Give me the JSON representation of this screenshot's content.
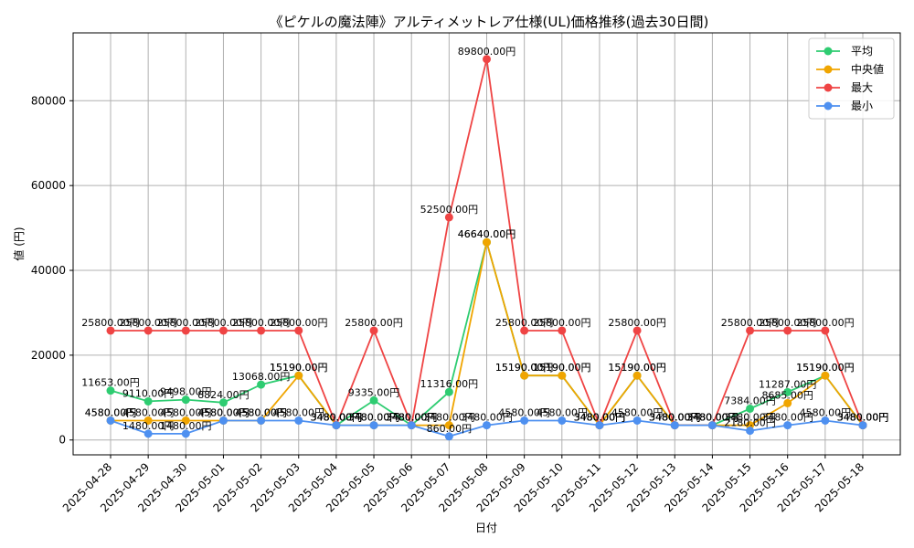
{
  "chart_data": {
    "type": "line",
    "title": "《ピケルの魔法陣》アルティメットレア仕様(UL)価格推移(過去30日間)",
    "xlabel": "日付",
    "ylabel": "値 (円)",
    "ylim": [
      -3500,
      96000
    ],
    "yticks": [
      0,
      20000,
      40000,
      60000,
      80000
    ],
    "grid": true,
    "legend_position": "top-right",
    "categories": [
      "2025-04-28",
      "2025-04-29",
      "2025-04-30",
      "2025-05-01",
      "2025-05-02",
      "2025-05-03",
      "2025-05-04",
      "2025-05-05",
      "2025-05-06",
      "2025-05-07",
      "2025-05-08",
      "2025-05-09",
      "2025-05-10",
      "2025-05-11",
      "2025-05-12",
      "2025-05-13",
      "2025-05-14",
      "2025-05-15",
      "2025-05-16",
      "2025-05-17",
      "2025-05-18"
    ],
    "series": [
      {
        "name": "平均",
        "color": "#2ecc71",
        "values": [
          11653,
          9110,
          9498,
          8824,
          13068,
          15190,
          3480,
          9335,
          3480,
          11316,
          46640,
          15190,
          15190,
          3480,
          15190,
          3480,
          3480,
          7384,
          11287,
          15190,
          3480
        ]
      },
      {
        "name": "中央値",
        "color": "#f0a500",
        "values": [
          4580,
          4580,
          4580,
          4580,
          4580,
          15190,
          3480,
          3480,
          3480,
          3480,
          46640,
          15190,
          15190,
          3480,
          15190,
          3480,
          3480,
          3480,
          8685,
          15190,
          3480
        ]
      },
      {
        "name": "最大",
        "color": "#ef4444",
        "values": [
          25800,
          25800,
          25800,
          25800,
          25800,
          25800,
          3480,
          25800,
          3480,
          52500,
          89800,
          25800,
          25800,
          3480,
          25800,
          3480,
          3480,
          25800,
          25800,
          25800,
          3480
        ]
      },
      {
        "name": "最小",
        "color": "#4e90f0",
        "values": [
          4580,
          1480,
          1480,
          4580,
          4580,
          4580,
          3480,
          3480,
          3480,
          860,
          3480,
          4580,
          4580,
          3480,
          4580,
          3480,
          3480,
          2180,
          3480,
          4580,
          3480
        ]
      }
    ],
    "labels": {
      "平均": [
        "11653.00円",
        "9110.00円",
        "9498.00円",
        "8824.00円",
        "13068.00円",
        "15190.00円",
        "3480.00円",
        "9335.00円",
        "3480.00円",
        "11316.00円",
        "46640.00円",
        "15190.00円",
        "15190.00円",
        "3480.00円",
        "15190.00円",
        "3480.00円",
        "3480.00円",
        "7384.00円",
        "11287.00円",
        "15190.00円",
        "3480.00円"
      ],
      "中央値": [
        "4580.00円",
        "4580.00円",
        "4580.00円",
        "4580.00円",
        "4580.00円",
        "15190.00円",
        "3480.00円",
        "3480.00円",
        "3480.00円",
        "3480.00円",
        "46640.00円",
        "15190.00円",
        "15190.00円",
        "3480.00円",
        "15190.00円",
        "3480.00円",
        "3480.00円",
        "3480.00円",
        "8685.00円",
        "15190.00円",
        "3480.00円"
      ],
      "最大": [
        "25800.00円",
        "25800.00円",
        "25800.00円",
        "25800.00円",
        "25800.00円",
        "25800.00円",
        "3480.00円",
        "25800.00円",
        "3480.00円",
        "52500.00円",
        "89800.00円",
        "25800.00円",
        "25800.00円",
        "3480.00円",
        "25800.00円",
        "3480.00円",
        "3480.00円",
        "25800.00円",
        "25800.00円",
        "25800.00円",
        "3480.00円"
      ],
      "最小": [
        "4580.00円",
        "1480.00円",
        "1480.00円",
        "4580.00円",
        "4580.00円",
        "4580.00円",
        "3480.00円",
        "3480.00円",
        "3480.00円",
        "860.00円",
        "3480.00円",
        "4580.00円",
        "4580.00円",
        "3480.00円",
        "4580.00円",
        "3480.00円",
        "3480.00円",
        "2180.00円",
        "3480.00円",
        "4580.00円",
        "3480.00円"
      ]
    }
  }
}
